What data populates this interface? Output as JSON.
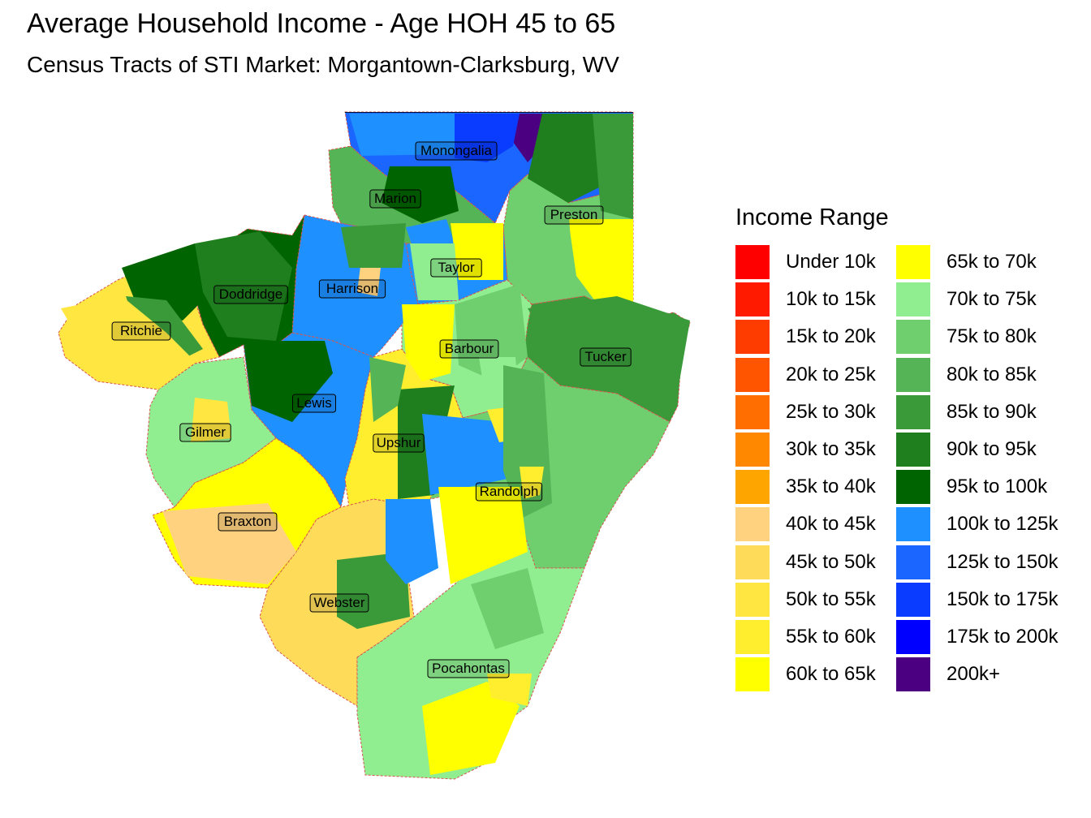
{
  "title": "Average Household Income - Age HOH 45 to 65",
  "subtitle": "Census Tracts of STI Market: Morgantown-Clarksburg, WV",
  "legend": {
    "title": "Income Range",
    "items": [
      {
        "label": "Under 10k",
        "color": "#ff0000"
      },
      {
        "label": "10k to 15k",
        "color": "#ff1a00"
      },
      {
        "label": "15k to 20k",
        "color": "#ff3c00"
      },
      {
        "label": "20k to 25k",
        "color": "#ff5500"
      },
      {
        "label": "25k to 30k",
        "color": "#ff6e00"
      },
      {
        "label": "30k to 35k",
        "color": "#ff8800"
      },
      {
        "label": "35k to 40k",
        "color": "#ffa500"
      },
      {
        "label": "40k to 45k",
        "color": "#ffd27f"
      },
      {
        "label": "45k to 50k",
        "color": "#ffdb5a"
      },
      {
        "label": "50k to 55k",
        "color": "#ffe640"
      },
      {
        "label": "55k to 60k",
        "color": "#ffee2e"
      },
      {
        "label": "60k to 65k",
        "color": "#ffff00"
      },
      {
        "label": "65k to 70k",
        "color": "#ffff00"
      },
      {
        "label": "70k to 75k",
        "color": "#90ee90"
      },
      {
        "label": "75k to 80k",
        "color": "#6fcf6f"
      },
      {
        "label": "80k to 85k",
        "color": "#55b455"
      },
      {
        "label": "85k to 90k",
        "color": "#3a9a3a"
      },
      {
        "label": "90k to 95k",
        "color": "#1f7f1f"
      },
      {
        "label": "95k to 100k",
        "color": "#006400"
      },
      {
        "label": "100k to 125k",
        "color": "#1e90ff"
      },
      {
        "label": "125k to 150k",
        "color": "#1a66ff"
      },
      {
        "label": "150k to 175k",
        "color": "#0a3cff"
      },
      {
        "label": "175k to 200k",
        "color": "#0000ff"
      },
      {
        "label": "200k+",
        "color": "#4b0082"
      }
    ]
  },
  "counties": [
    {
      "name": "Monongalia",
      "fill": "#1a66ff"
    },
    {
      "name": "Preston",
      "fill": "#6fcf6f"
    },
    {
      "name": "Marion",
      "fill": "#55b455"
    },
    {
      "name": "Taylor",
      "fill": "#1e90ff"
    },
    {
      "name": "Harrison",
      "fill": "#1e90ff"
    },
    {
      "name": "Doddridge",
      "fill": "#006400"
    },
    {
      "name": "Ritchie",
      "fill": "#ffe640"
    },
    {
      "name": "Barbour",
      "fill": "#90ee90"
    },
    {
      "name": "Tucker",
      "fill": "#3a9a3a"
    },
    {
      "name": "Lewis",
      "fill": "#1e90ff"
    },
    {
      "name": "Gilmer",
      "fill": "#90ee90"
    },
    {
      "name": "Upshur",
      "fill": "#ffee2e"
    },
    {
      "name": "Randolph",
      "fill": "#6fcf6f"
    },
    {
      "name": "Braxton",
      "fill": "#ffff00"
    },
    {
      "name": "Webster",
      "fill": "#ffdb5a"
    },
    {
      "name": "Pocahontas",
      "fill": "#90ee90"
    }
  ]
}
